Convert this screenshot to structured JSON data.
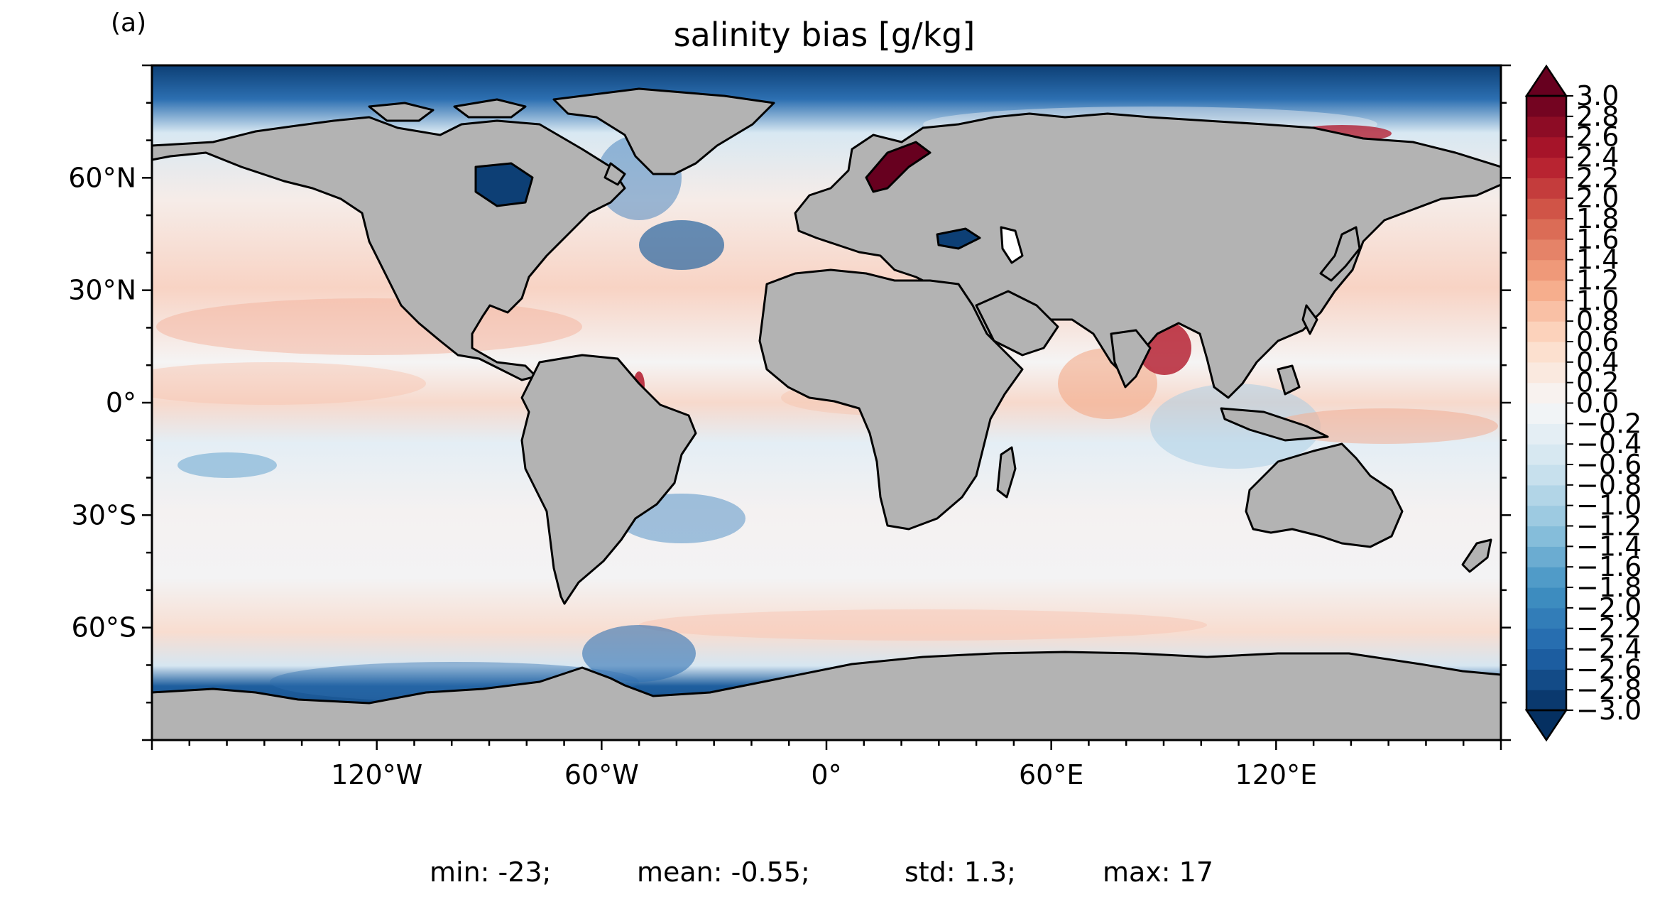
{
  "figure": {
    "panel_label": "(a)",
    "title": "salinity bias [g/kg]"
  },
  "map": {
    "projection": "plate-carree",
    "land_color": "#b3b3b3",
    "coastline_color": "#000000",
    "ocean_field": "salinity bias",
    "x_ticks": [
      {
        "lon": -120,
        "label": "120°W"
      },
      {
        "lon": -60,
        "label": "60°W"
      },
      {
        "lon": 0,
        "label": "0°"
      },
      {
        "lon": 60,
        "label": "60°E"
      },
      {
        "lon": 120,
        "label": "120°E"
      }
    ],
    "y_ticks": [
      {
        "lat": 60,
        "label": "60°N"
      },
      {
        "lat": 30,
        "label": "30°N"
      },
      {
        "lat": 0,
        "label": "0°"
      },
      {
        "lat": -30,
        "label": "30°S"
      },
      {
        "lat": -60,
        "label": "60°S"
      }
    ],
    "lon_range": [
      -180,
      180
    ],
    "lat_range": [
      -90,
      90
    ]
  },
  "colorbar": {
    "colormap": "RdBu_r",
    "extend": "both",
    "min": -3.0,
    "max": 3.0,
    "step": 0.2,
    "tick_labels": [
      "3.0",
      "2.8",
      "2.6",
      "2.4",
      "2.2",
      "2.0",
      "1.8",
      "1.6",
      "1.4",
      "1.2",
      "1.0",
      "0.8",
      "0.6",
      "0.4",
      "0.2",
      "0.0",
      "−0.2",
      "−0.4",
      "−0.6",
      "−0.8",
      "−1.0",
      "−1.2",
      "−1.4",
      "−1.6",
      "−1.8",
      "−2.0",
      "−2.2",
      "−2.4",
      "−2.6",
      "−2.8",
      "−3.0"
    ],
    "colors": [
      "#053061",
      "#2166ac",
      "#4393c3",
      "#92c5de",
      "#d1e5f0",
      "#f7f7f7",
      "#fddbc7",
      "#f4a582",
      "#d6604d",
      "#b2182b",
      "#67001f"
    ]
  },
  "stats": {
    "min": "min: -23;",
    "mean": "mean: -0.55;",
    "std": "std: 1.3;",
    "max": "max: 17"
  }
}
